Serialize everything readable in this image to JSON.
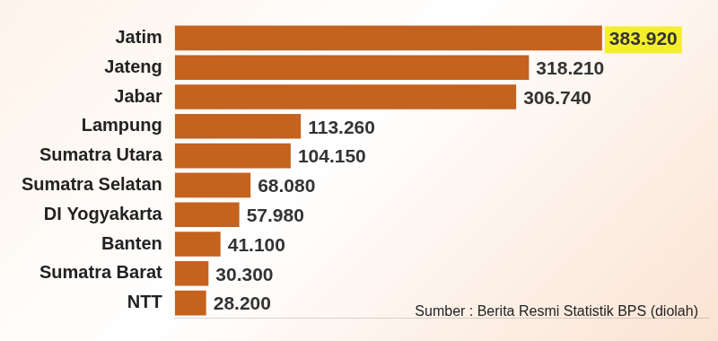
{
  "chart_data": {
    "type": "bar",
    "orientation": "horizontal",
    "categories": [
      "Jatim",
      "Jateng",
      "Jabar",
      "Lampung",
      "Sumatra Utara",
      "Sumatra Selatan",
      "DI Yogyakarta",
      "Banten",
      "Sumatra Barat",
      "NTT"
    ],
    "values": [
      383920,
      318210,
      306740,
      113260,
      104150,
      68080,
      57980,
      41100,
      30300,
      28200
    ],
    "value_labels": [
      "383.920",
      "318.210",
      "306.740",
      "113.260",
      "104.150",
      "68.080",
      "57.980",
      "41.100",
      "30.300",
      "28.200"
    ],
    "color": "#c4621e",
    "xlim": [
      0,
      480000
    ],
    "data_labels": true,
    "tick_labels": "y",
    "grid": false,
    "annotations": [
      "Sumber : Berita Resmi Statistik BPS (diolah)"
    ]
  }
}
